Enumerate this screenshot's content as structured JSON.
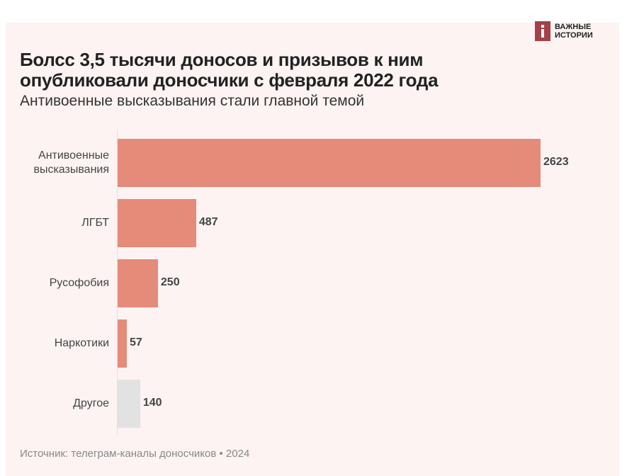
{
  "header": {
    "logo_line1": "ВАЖНЫЕ",
    "logo_line2": "ИСТОРИИ",
    "title_line1": "Болсс 3,5 тысячи доносов и призывов к ним",
    "title_line2": "опубликовали доносчики с февраля 2022 года",
    "subtitle": "Антивоенные высказывания стали главной темой"
  },
  "chart_data": {
    "type": "bar",
    "orientation": "horizontal",
    "title": "Болсс 3,5 тысячи доносов и призывов к ним опубликовали доносчики с февраля 2022 года",
    "subtitle": "Антивоенные высказывания стали главной темой",
    "categories": [
      [
        "Антивоенные",
        "высказывания"
      ],
      [
        "ЛГБТ"
      ],
      [
        "Русофобия"
      ],
      [
        "Наркотики"
      ],
      [
        "Другое"
      ]
    ],
    "values": [
      2623,
      487,
      250,
      57,
      140
    ],
    "value_labels": [
      "2623",
      "487",
      "250",
      "57",
      "140"
    ],
    "colors": [
      "#e58b79",
      "#e58b79",
      "#e58b79",
      "#e58b79",
      "#e2e2e2"
    ],
    "xlim": [
      0,
      2623
    ],
    "grid": false
  },
  "footer": {
    "source": "Источник: телеграм-каналы доносчиков • 2024"
  }
}
